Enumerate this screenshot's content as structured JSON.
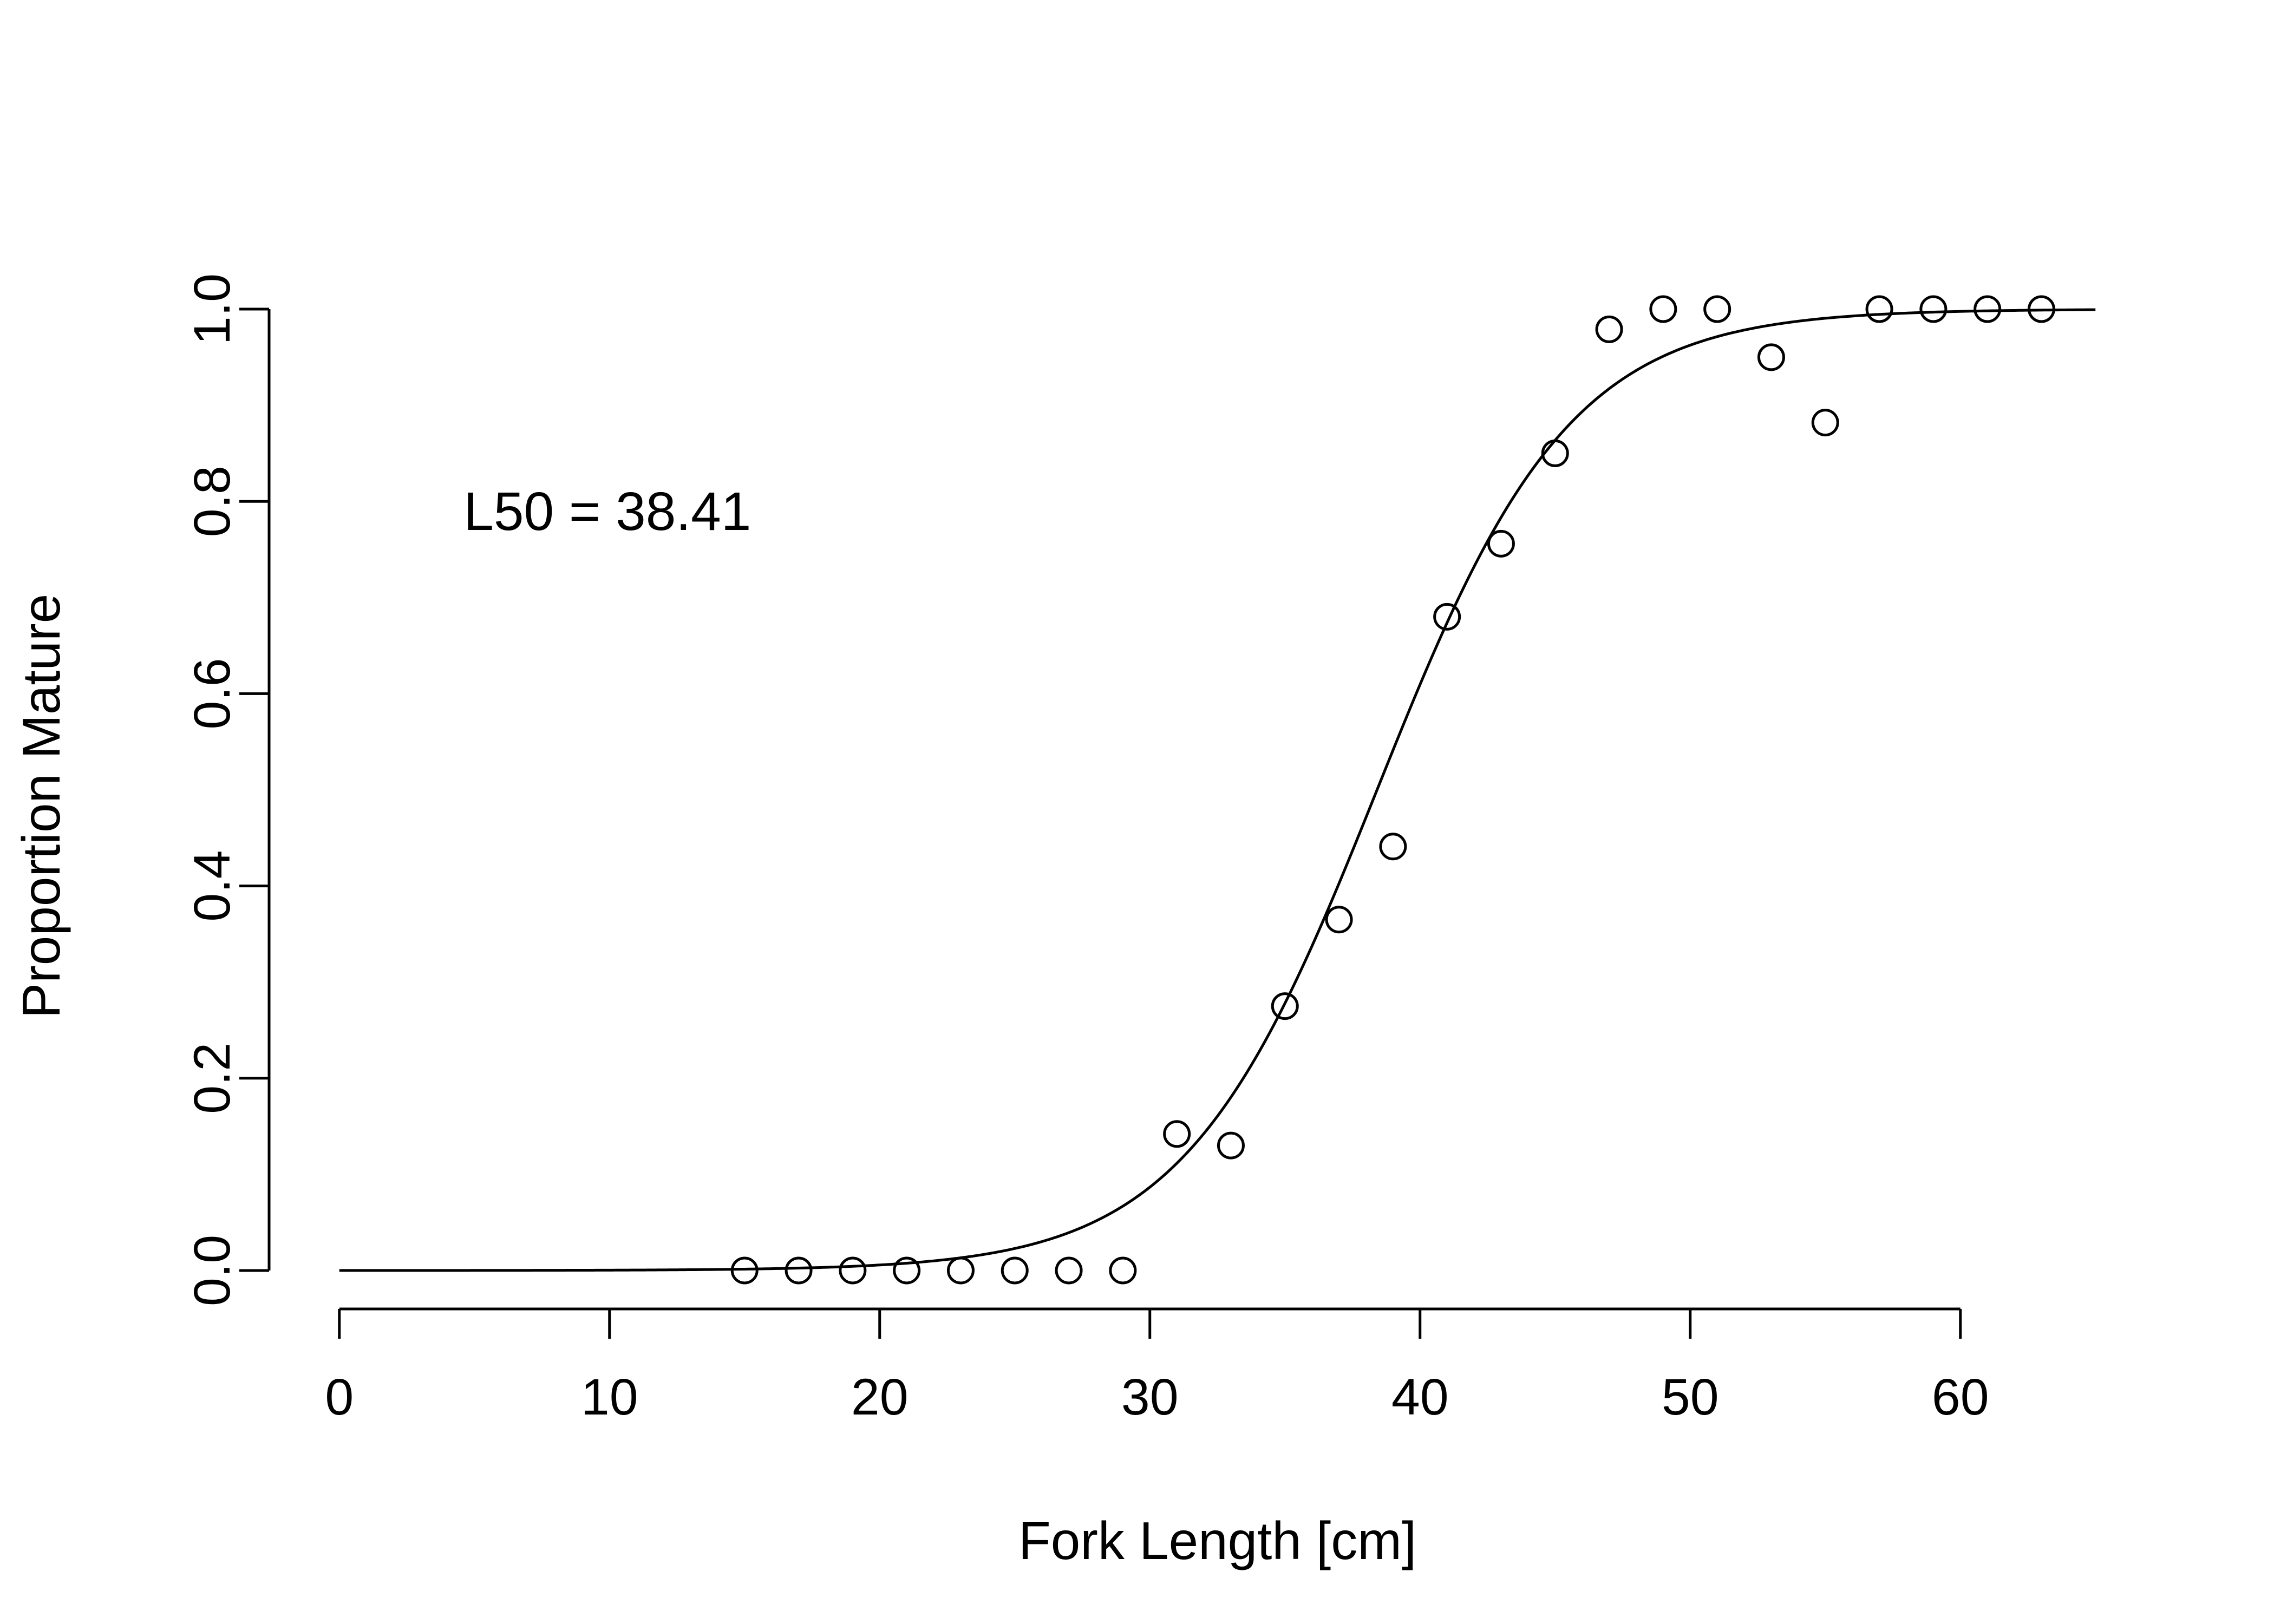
{
  "chart_data": {
    "type": "scatter",
    "xlabel": "Fork Length [cm]",
    "ylabel": "Proportion Mature",
    "xlim": [
      -2.6,
      67.6
    ],
    "ylim": [
      -0.04,
      1.04
    ],
    "x_ticks": [
      0,
      10,
      20,
      30,
      40,
      50,
      60
    ],
    "x_tick_labels": [
      "0",
      "10",
      "20",
      "30",
      "40",
      "50",
      "60"
    ],
    "y_ticks": [
      0.0,
      0.2,
      0.4,
      0.6,
      0.8,
      1.0
    ],
    "y_tick_labels": [
      "0.0",
      "0.2",
      "0.4",
      "0.6",
      "0.8",
      "1.0"
    ],
    "grid": false,
    "annotation": {
      "text": "L50 = 38.41",
      "x": 4.6,
      "y": 0.79
    },
    "points": {
      "x": [
        15,
        17,
        19,
        21,
        23,
        25,
        27,
        29,
        31,
        33,
        35,
        37,
        39,
        41,
        43,
        45,
        47,
        49,
        51,
        53,
        55,
        57,
        59,
        61,
        63
      ],
      "y": [
        0.0,
        0.0,
        0.0,
        0.0,
        0.0,
        0.0,
        0.0,
        0.0,
        0.142,
        0.13,
        0.275,
        0.365,
        0.441,
        0.68,
        0.756,
        0.85,
        0.979,
        1.0,
        1.0,
        0.95,
        0.882,
        1.0,
        1.0,
        1.0,
        1.0
      ]
    },
    "fit_curve": {
      "model": "logistic",
      "L50": 38.41,
      "slope": 0.28,
      "x_range": [
        0,
        65
      ]
    }
  }
}
